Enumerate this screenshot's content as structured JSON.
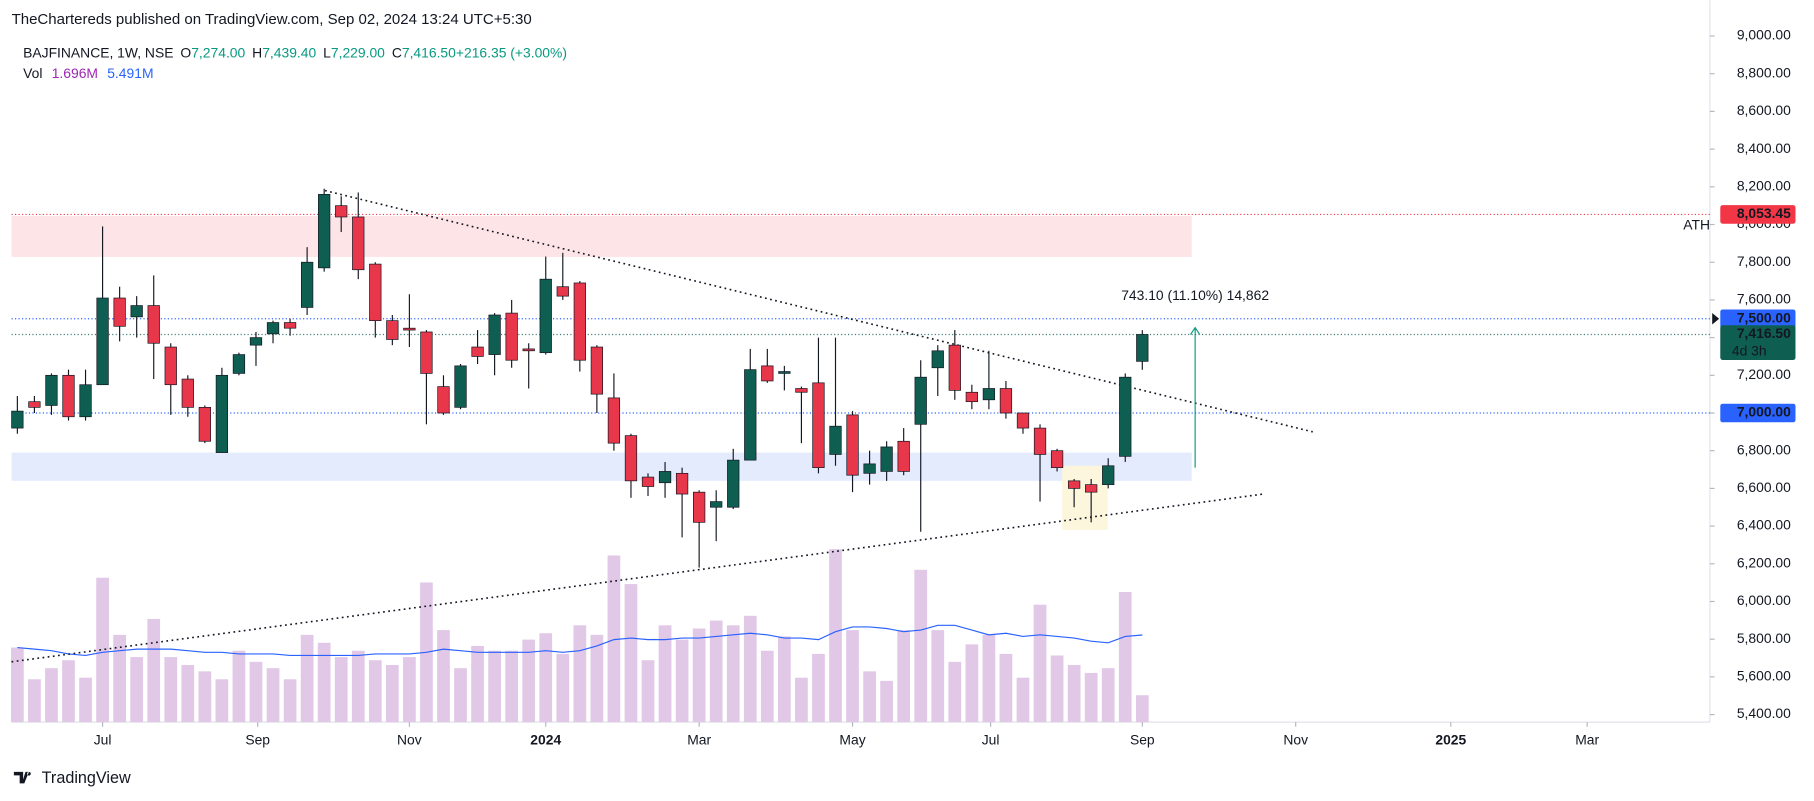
{
  "header": "TheChartereds published on TradingView.com, Sep 02, 2024 13:24 UTC+5:30",
  "footer": "TradingView",
  "chart_data": {
    "type": "candlestick",
    "title": "BAJFINANCE, 1W, NSE",
    "ohlc_legend": [
      {
        "key": "O",
        "value": "7,274.00"
      },
      {
        "key": "H",
        "value": "7,439.40"
      },
      {
        "key": "L",
        "value": "7,229.00"
      },
      {
        "key": "C",
        "value": "7,416.50"
      },
      {
        "key": "",
        "value": "+216.35 (+3.00%)"
      }
    ],
    "up_color": "#0f5e52",
    "down_color": "#e8364a",
    "open": [
      6920,
      7060,
      7040,
      7200,
      6980,
      7150,
      7610,
      7510,
      7570,
      7350,
      7180,
      7030,
      6790,
      7210,
      7360,
      7420,
      7480,
      7560,
      7770,
      8100,
      8040,
      7790,
      7490,
      7450,
      7430,
      7140,
      7030,
      7350,
      7310,
      7530,
      7340,
      7320,
      7670,
      7690,
      7350,
      7080,
      6880,
      6660,
      6630,
      6680,
      6580,
      6500,
      6500,
      6750,
      7250,
      7210,
      7130,
      7160,
      6780,
      6990,
      6680,
      6690,
      6850,
      6940,
      7240,
      7360,
      7110,
      7070,
      7130,
      7000,
      6920,
      6800,
      6640,
      6620,
      6620,
      6770,
      7274
    ],
    "high": [
      7090,
      7090,
      7210,
      7230,
      7230,
      7990,
      7670,
      7620,
      7730,
      7370,
      7200,
      7040,
      7240,
      7320,
      7430,
      7490,
      7500,
      7880,
      8190,
      8150,
      8170,
      7800,
      7520,
      7630,
      7440,
      7200,
      7260,
      7440,
      7530,
      7600,
      7370,
      7830,
      7850,
      7700,
      7360,
      7210,
      6890,
      6680,
      6740,
      6710,
      6590,
      6590,
      6810,
      7340,
      7340,
      7250,
      7140,
      7400,
      7400,
      7010,
      6800,
      6850,
      6920,
      7280,
      7360,
      7440,
      7150,
      7330,
      7170,
      7000,
      6940,
      6810,
      6650,
      6650,
      6760,
      7210,
      7439.4
    ],
    "low": [
      6890,
      7000,
      6990,
      6960,
      6960,
      7150,
      7380,
      7400,
      7180,
      6990,
      6980,
      6840,
      6790,
      7200,
      7250,
      7370,
      7410,
      7520,
      7750,
      7960,
      7710,
      7400,
      7360,
      7350,
      6940,
      6990,
      7020,
      7260,
      7200,
      7240,
      7130,
      7310,
      7600,
      7220,
      7000,
      6800,
      6550,
      6560,
      6550,
      6340,
      6180,
      6320,
      6490,
      6750,
      7160,
      7120,
      6840,
      6680,
      6720,
      6580,
      6620,
      6640,
      6670,
      6370,
      7090,
      7070,
      7020,
      7020,
      6970,
      6890,
      6530,
      6690,
      6500,
      6420,
      6600,
      6740,
      7229
    ],
    "close": [
      7010,
      7030,
      7200,
      6980,
      7150,
      7610,
      7460,
      7570,
      7370,
      7150,
      7030,
      6850,
      7200,
      7310,
      7400,
      7480,
      7450,
      7800,
      8160,
      8040,
      7760,
      7490,
      7390,
      7440,
      7210,
      7000,
      7250,
      7300,
      7520,
      7280,
      7330,
      7710,
      7620,
      7280,
      7100,
      6840,
      6640,
      6610,
      6690,
      6570,
      6420,
      6530,
      6750,
      7230,
      7170,
      7220,
      7110,
      6710,
      6930,
      6670,
      6730,
      6820,
      6690,
      7190,
      7330,
      7120,
      7060,
      7130,
      7000,
      6920,
      6780,
      6710,
      6600,
      6580,
      6720,
      7190,
      7416.5
    ],
    "volume": {
      "name": "Vol",
      "color": "#e1c8e6",
      "legend_label": "1.696M",
      "values": [
        4.7,
        2.7,
        3.4,
        3.9,
        2.8,
        9.1,
        5.5,
        4.1,
        6.5,
        4.1,
        3.6,
        3.2,
        2.7,
        4.5,
        3.8,
        3.4,
        2.7,
        5.5,
        5.0,
        4.1,
        4.5,
        3.9,
        3.6,
        4.1,
        8.8,
        5.8,
        3.4,
        4.8,
        4.5,
        4.5,
        5.2,
        5.6,
        4.3,
        6.1,
        5.5,
        10.5,
        8.7,
        3.9,
        6.1,
        5.2,
        5.9,
        6.4,
        6.1,
        6.7,
        4.5,
        5.4,
        2.8,
        4.3,
        10.9,
        5.8,
        3.2,
        2.6,
        5.8,
        9.6,
        5.8,
        3.8,
        4.9,
        5.5,
        4.3,
        2.8,
        7.4,
        4.2,
        3.6,
        3.1,
        3.4,
        8.2,
        1.696
      ]
    },
    "volume_ma": {
      "color": "#2962ff",
      "legend_label": "5.491M",
      "values": [
        4.7,
        4.6,
        4.5,
        4.3,
        4.2,
        4.4,
        4.5,
        4.6,
        4.6,
        4.6,
        4.5,
        4.4,
        4.4,
        4.3,
        4.3,
        4.3,
        4.2,
        4.2,
        4.2,
        4.2,
        4.2,
        4.3,
        4.3,
        4.3,
        4.4,
        4.6,
        4.5,
        4.4,
        4.4,
        4.4,
        4.4,
        4.5,
        4.4,
        4.5,
        4.8,
        5.2,
        5.3,
        5.2,
        5.2,
        5.3,
        5.3,
        5.4,
        5.5,
        5.6,
        5.5,
        5.3,
        5.3,
        5.2,
        5.7,
        6.0,
        6.0,
        5.9,
        5.7,
        5.8,
        6.1,
        6.1,
        5.8,
        5.5,
        5.6,
        5.4,
        5.5,
        5.4,
        5.3,
        5.1,
        5.0,
        5.4,
        5.491
      ]
    },
    "volume_lim": [
      0,
      45.5
    ],
    "xlim": [
      -0.34,
      99.3
    ],
    "xticks": [
      {
        "value": 5.0,
        "label": "Jul"
      },
      {
        "value": 14.1,
        "label": "Sep"
      },
      {
        "value": 23.0,
        "label": "Nov"
      },
      {
        "value": 31.0,
        "label": "2024"
      },
      {
        "value": 40.0,
        "label": "Mar"
      },
      {
        "value": 49.0,
        "label": "May"
      },
      {
        "value": 57.1,
        "label": "Jul"
      },
      {
        "value": 66.0,
        "label": "Sep"
      },
      {
        "value": 75.0,
        "label": "Nov"
      },
      {
        "value": 84.1,
        "label": "2025"
      },
      {
        "value": 92.1,
        "label": "Mar"
      }
    ],
    "ylim": [
      5360,
      9190
    ],
    "yticks": [
      {
        "value": 5400,
        "label": "5,400.00"
      },
      {
        "value": 5600,
        "label": "5,600.00"
      },
      {
        "value": 5800,
        "label": "5,800.00"
      },
      {
        "value": 6000,
        "label": "6,000.00"
      },
      {
        "value": 6200,
        "label": "6,200.00"
      },
      {
        "value": 6400,
        "label": "6,400.00"
      },
      {
        "value": 6600,
        "label": "6,600.00"
      },
      {
        "value": 6800,
        "label": "6,800.00"
      },
      {
        "value": 7000,
        "label": "7,000.00"
      },
      {
        "value": 7200,
        "label": "7,200.00"
      },
      {
        "value": 7400,
        "label": "7,400.00"
      },
      {
        "value": 7600,
        "label": "7,600.00"
      },
      {
        "value": 7800,
        "label": "7,800.00"
      },
      {
        "value": 8000,
        "label": "8,000.00"
      },
      {
        "value": 8200,
        "label": "8,200.00"
      },
      {
        "value": 8400,
        "label": "8,400.00"
      },
      {
        "value": 8600,
        "label": "8,600.00"
      },
      {
        "value": 8800,
        "label": "8,800.00"
      },
      {
        "value": 9000,
        "label": "9,000.00"
      }
    ],
    "levels": [
      {
        "value": 8053.45,
        "label": "8,053.45",
        "color": "#f23645",
        "note": "ATH"
      },
      {
        "value": 7500,
        "label": "7,500.00",
        "color": "#2962ff"
      },
      {
        "value": 7416.5,
        "label": "7,416.50",
        "sublabel": "4d 3h",
        "color": "#0f5e52"
      },
      {
        "value": 7000,
        "label": "7,000.00",
        "color": "#2962ff"
      }
    ],
    "zones": [
      {
        "x": [
          -0.34,
          68.9
        ],
        "y": [
          7828,
          8045
        ],
        "color": "#fde4e6"
      },
      {
        "x": [
          -0.34,
          68.9
        ],
        "y": [
          6640,
          6790
        ],
        "color": "#e3ebfd"
      },
      {
        "x": [
          61.3,
          63.97
        ],
        "y": [
          6380,
          6720
        ],
        "color": "#fbf6dc"
      }
    ],
    "trendlines": [
      {
        "x": [
          18.05,
          76.0
        ],
        "y": [
          8180,
          6900
        ]
      },
      {
        "x": [
          -0.34,
          73.1
        ],
        "y": [
          5680,
          6570
        ]
      }
    ],
    "measure": {
      "x": 69.1,
      "y": [
        6710,
        7453
      ],
      "label": "743.10 (11.10%) 14,862",
      "color": "#089981",
      "label_color": "#2962ff"
    }
  }
}
